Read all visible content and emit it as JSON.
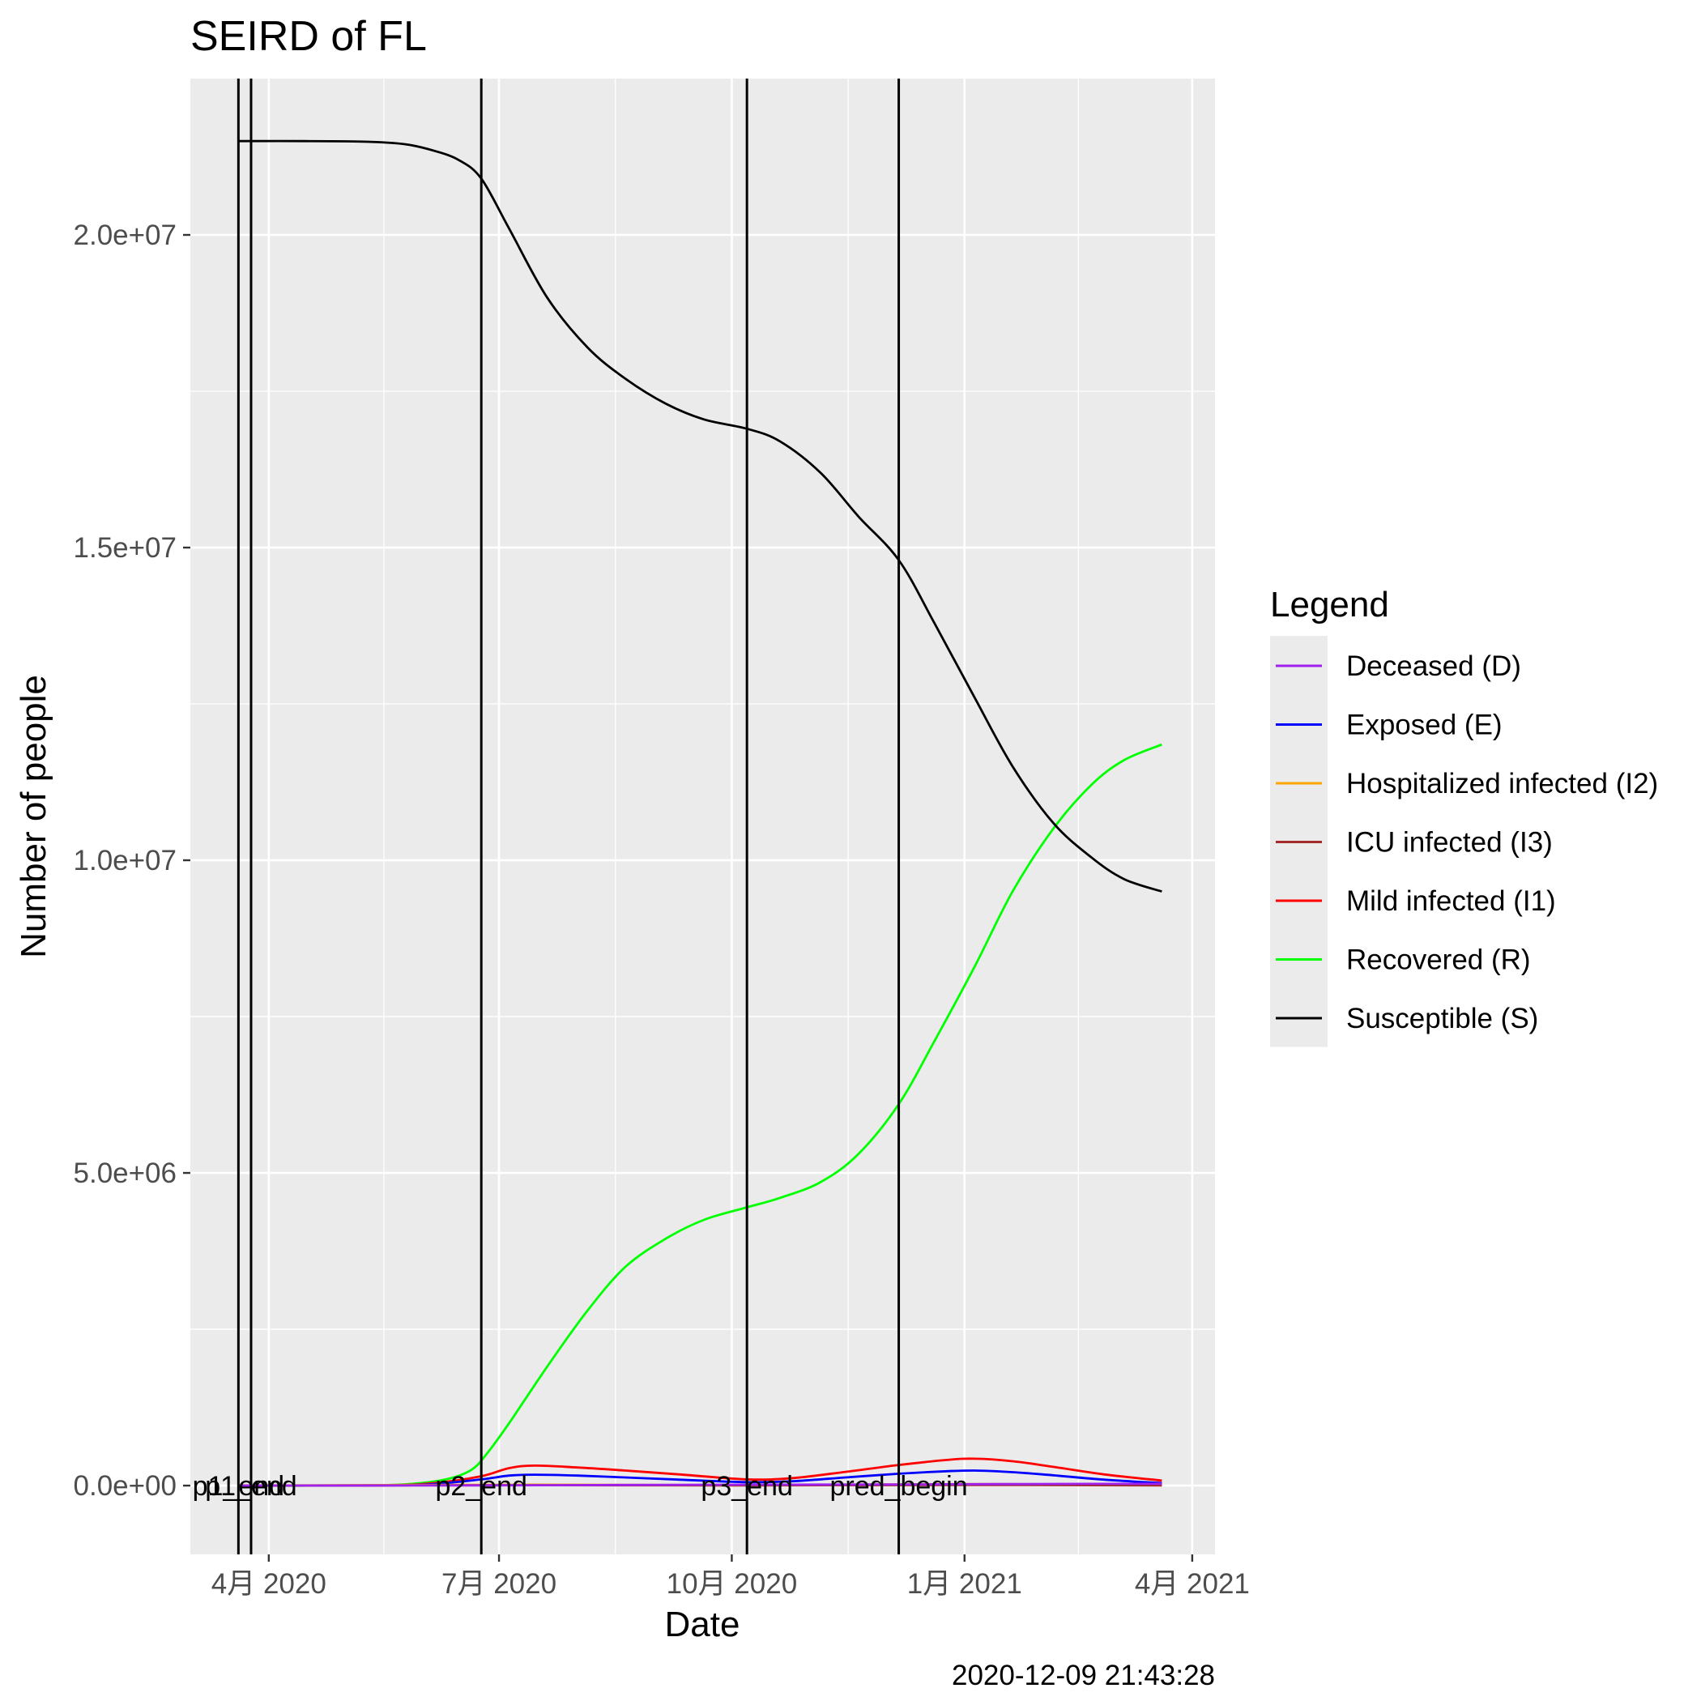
{
  "chart_data": {
    "type": "line",
    "title": "SEIRD of FL",
    "xlabel": "Date",
    "ylabel": "Number of people",
    "caption": "2020-12-09 21:43:28",
    "xlim": [
      "2020-03-01",
      "2021-04-10"
    ],
    "ylim": [
      -1100000,
      22500000
    ],
    "x_ticks": [
      {
        "date": "2020-04-01",
        "label": "4月 2020"
      },
      {
        "date": "2020-07-01",
        "label": "7月 2020"
      },
      {
        "date": "2020-10-01",
        "label": "10月 2020"
      },
      {
        "date": "2021-01-01",
        "label": "1月 2021"
      },
      {
        "date": "2021-04-01",
        "label": "4月 2021"
      }
    ],
    "y_ticks": [
      {
        "value": 0,
        "label": "0.0e+00"
      },
      {
        "value": 5000000,
        "label": "5.0e+06"
      },
      {
        "value": 10000000,
        "label": "1.0e+07"
      },
      {
        "value": 15000000,
        "label": "1.5e+07"
      },
      {
        "value": 20000000,
        "label": "2.0e+07"
      }
    ],
    "grid": true,
    "legend": {
      "title": "Legend",
      "position": "right",
      "entries": [
        {
          "name": "Deceased (D)",
          "color": "#a020f0"
        },
        {
          "name": "Exposed (E)",
          "color": "#0000ff"
        },
        {
          "name": "Hospitalized infected (I2)",
          "color": "#ffa500"
        },
        {
          "name": "ICU infected (I3)",
          "color": "#a52a2a"
        },
        {
          "name": "Mild infected (I1)",
          "color": "#ff0000"
        },
        {
          "name": "Recovered (R)",
          "color": "#00ff00"
        },
        {
          "name": "Susceptible (S)",
          "color": "#000000"
        }
      ]
    },
    "vlines": [
      {
        "date": "2020-03-20",
        "label": "p1_end"
      },
      {
        "date": "2020-03-25",
        "label": "p1_end"
      },
      {
        "date": "2020-06-24",
        "label": "p2_end"
      },
      {
        "date": "2020-10-07",
        "label": "p3_end"
      },
      {
        "date": "2020-12-06",
        "label": "pred_begin"
      }
    ],
    "series": [
      {
        "name": "Susceptible (S)",
        "color": "#000000",
        "x": [
          "2020-03-20",
          "2020-04-15",
          "2020-05-10",
          "2020-05-25",
          "2020-06-05",
          "2020-06-15",
          "2020-06-24",
          "2020-07-05",
          "2020-07-20",
          "2020-08-05",
          "2020-08-20",
          "2020-09-05",
          "2020-09-20",
          "2020-10-07",
          "2020-10-20",
          "2020-11-05",
          "2020-11-20",
          "2020-12-06",
          "2020-12-20",
          "2021-01-05",
          "2021-01-20",
          "2021-02-05",
          "2021-02-20",
          "2021-03-05",
          "2021-03-20"
        ],
        "y": [
          21500000,
          21500000,
          21490000,
          21450000,
          21350000,
          21200000,
          20900000,
          20100000,
          19000000,
          18200000,
          17700000,
          17300000,
          17050000,
          16900000,
          16700000,
          16200000,
          15500000,
          14800000,
          13800000,
          12600000,
          11500000,
          10600000,
          10050000,
          9700000,
          9500000
        ]
      },
      {
        "name": "Recovered (R)",
        "color": "#00ff00",
        "x": [
          "2020-03-20",
          "2020-05-01",
          "2020-05-25",
          "2020-06-10",
          "2020-06-20",
          "2020-06-26",
          "2020-07-05",
          "2020-07-20",
          "2020-08-05",
          "2020-08-20",
          "2020-09-05",
          "2020-09-20",
          "2020-10-07",
          "2020-10-20",
          "2020-11-05",
          "2020-11-20",
          "2020-12-06",
          "2020-12-20",
          "2021-01-05",
          "2021-01-20",
          "2021-02-05",
          "2021-02-20",
          "2021-03-05",
          "2021-03-20"
        ],
        "y": [
          0,
          0,
          20000,
          100000,
          250000,
          500000,
          1000000,
          1900000,
          2800000,
          3500000,
          3950000,
          4250000,
          4450000,
          4600000,
          4850000,
          5300000,
          6100000,
          7100000,
          8300000,
          9500000,
          10500000,
          11200000,
          11600000,
          11850000
        ]
      },
      {
        "name": "Mild infected (I1)",
        "color": "#ff0000",
        "x": [
          "2020-03-20",
          "2020-05-15",
          "2020-06-05",
          "2020-06-24",
          "2020-07-05",
          "2020-07-15",
          "2020-08-01",
          "2020-08-20",
          "2020-09-10",
          "2020-10-07",
          "2020-10-25",
          "2020-11-15",
          "2020-12-06",
          "2020-12-25",
          "2021-01-05",
          "2021-01-20",
          "2021-02-05",
          "2021-02-25",
          "2021-03-20"
        ],
        "y": [
          0,
          5000,
          40000,
          150000,
          280000,
          320000,
          290000,
          240000,
          180000,
          100000,
          120000,
          220000,
          330000,
          410000,
          430000,
          390000,
          300000,
          180000,
          80000
        ]
      },
      {
        "name": "Exposed (E)",
        "color": "#0000ff",
        "x": [
          "2020-03-20",
          "2020-05-15",
          "2020-06-05",
          "2020-06-24",
          "2020-07-05",
          "2020-07-15",
          "2020-08-01",
          "2020-08-20",
          "2020-09-10",
          "2020-10-07",
          "2020-10-25",
          "2020-11-15",
          "2020-12-06",
          "2020-12-25",
          "2021-01-05",
          "2021-01-20",
          "2021-02-05",
          "2021-02-25",
          "2021-03-20"
        ],
        "y": [
          0,
          3000,
          25000,
          100000,
          160000,
          175000,
          160000,
          130000,
          95000,
          55000,
          70000,
          130000,
          190000,
          230000,
          240000,
          215000,
          165000,
          95000,
          40000
        ]
      },
      {
        "name": "Hospitalized infected (I2)",
        "color": "#ffa500",
        "x": [
          "2020-03-20",
          "2020-07-15",
          "2020-10-07",
          "2021-01-05",
          "2021-03-20"
        ],
        "y": [
          0,
          15000,
          8000,
          25000,
          8000
        ]
      },
      {
        "name": "ICU infected (I3)",
        "color": "#a52a2a",
        "x": [
          "2020-03-20",
          "2020-07-15",
          "2020-10-07",
          "2021-01-05",
          "2021-03-20"
        ],
        "y": [
          0,
          6000,
          3000,
          10000,
          3000
        ]
      },
      {
        "name": "Deceased (D)",
        "color": "#a020f0",
        "x": [
          "2020-03-20",
          "2020-06-24",
          "2020-08-01",
          "2020-09-10",
          "2020-10-07",
          "2020-11-15",
          "2020-12-06",
          "2021-01-05",
          "2021-02-05",
          "2021-03-20"
        ],
        "y": [
          0,
          3000,
          8000,
          13000,
          15000,
          17000,
          19000,
          23000,
          27000,
          30000
        ]
      }
    ]
  }
}
